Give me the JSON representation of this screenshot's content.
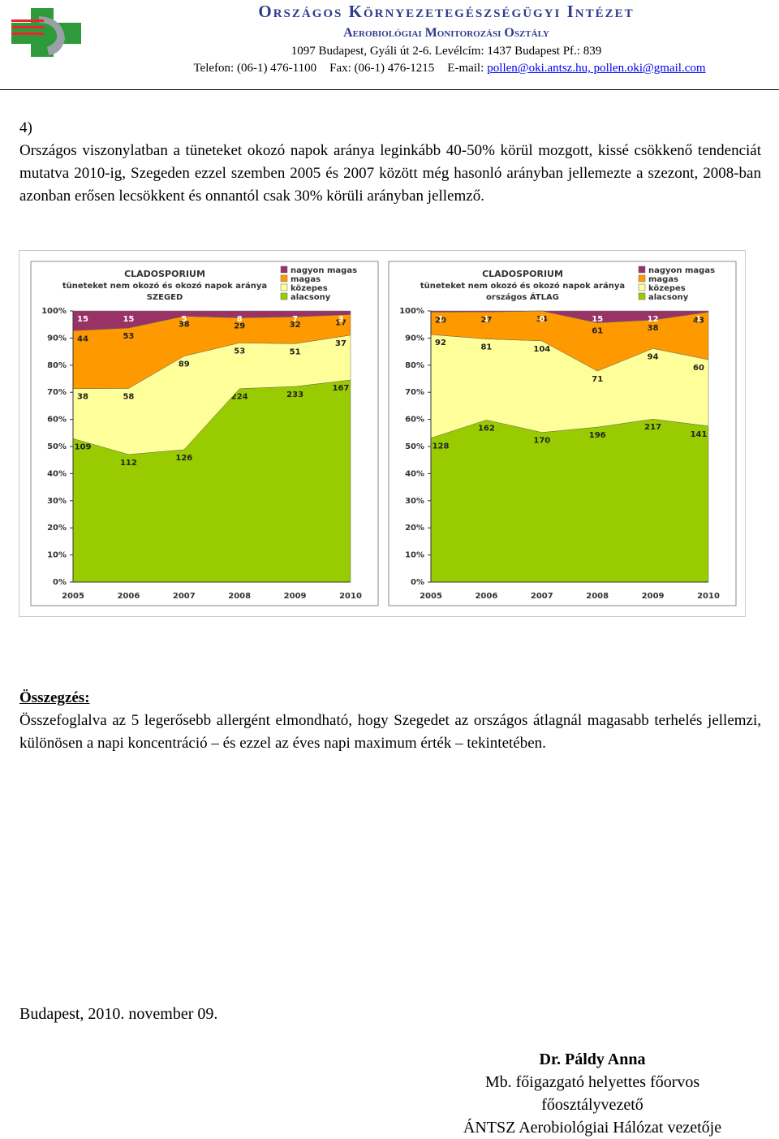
{
  "header": {
    "institute": "Országos Környezetegészségügyi Intézet",
    "department": "Aerobiológiai Monitorozási Osztály",
    "address": "1097 Budapest, Gyáli út 2-6. Levélcím: 1437 Budapest Pf.: 839",
    "phone": "Telefon: (06-1) 476-1100",
    "fax": "Fax: (06-1) 476-1215",
    "email_label": "E-mail:",
    "emails": "pollen@oki.antsz.hu, pollen.oki@gmail.com"
  },
  "section": {
    "number": "4)",
    "paragraph": "Országos viszonylatban a tüneteket okozó napok aránya leginkább 40-50% körül mozgott, kissé csökkenő tendenciát mutatva 2010-ig, Szegeden ezzel szemben 2005 és 2007 között még hasonló arányban jellemezte a szezont, 2008-ban azonban erősen lecsökkent és onnantól csak 30% körüli arányban jellemző."
  },
  "chart_data": [
    {
      "type": "area",
      "stacking": "percent",
      "title": "CLADOSPORIUM",
      "subtitle": "tüneteket nem okozó és okozó napok aránya",
      "region": "SZEGED",
      "categories": [
        "2005",
        "2006",
        "2007",
        "2008",
        "2009",
        "2010"
      ],
      "ylim": [
        0,
        100
      ],
      "yticks": [
        {
          "value": 0,
          "label": "0%"
        },
        {
          "value": 10,
          "label": "10%"
        },
        {
          "value": 20,
          "label": "20%"
        },
        {
          "value": 30,
          "label": "30%"
        },
        {
          "value": 40,
          "label": "40%"
        },
        {
          "value": 50,
          "label": "50%"
        },
        {
          "value": 60,
          "label": "60%"
        },
        {
          "value": 70,
          "label": "70%"
        },
        {
          "value": 80,
          "label": "80%"
        },
        {
          "value": 90,
          "label": "90%"
        },
        {
          "value": 100,
          "label": "100%"
        }
      ],
      "series": [
        {
          "name": "alacsony",
          "color": "#99cc00",
          "values": [
            109,
            112,
            126,
            224,
            233,
            167
          ]
        },
        {
          "name": "közepes",
          "color": "#ffff99",
          "values": [
            38,
            58,
            89,
            53,
            51,
            37
          ]
        },
        {
          "name": "magas",
          "color": "#ff9900",
          "values": [
            44,
            53,
            38,
            29,
            32,
            17
          ]
        },
        {
          "name": "nagyon magas",
          "color": "#993366",
          "values": [
            15,
            15,
            5,
            8,
            7,
            3
          ]
        }
      ]
    },
    {
      "type": "area",
      "stacking": "percent",
      "title": "CLADOSPORIUM",
      "subtitle": "tüneteket nem okozó és okozó napok aránya",
      "region": "országos ÁTLAG",
      "categories": [
        "2005",
        "2006",
        "2007",
        "2008",
        "2009",
        "2010"
      ],
      "ylim": [
        0,
        100
      ],
      "yticks": [
        {
          "value": 0,
          "label": "0%"
        },
        {
          "value": 10,
          "label": "10%"
        },
        {
          "value": 20,
          "label": "20%"
        },
        {
          "value": 30,
          "label": "30%"
        },
        {
          "value": 40,
          "label": "40%"
        },
        {
          "value": 50,
          "label": "50%"
        },
        {
          "value": 60,
          "label": "60%"
        },
        {
          "value": 70,
          "label": "70%"
        },
        {
          "value": 80,
          "label": "80%"
        },
        {
          "value": 90,
          "label": "90%"
        },
        {
          "value": 100,
          "label": "100%"
        }
      ],
      "series": [
        {
          "name": "alacsony",
          "color": "#99cc00",
          "values": [
            128,
            162,
            170,
            196,
            217,
            141
          ]
        },
        {
          "name": "közepes",
          "color": "#ffff99",
          "values": [
            92,
            81,
            104,
            71,
            94,
            60
          ]
        },
        {
          "name": "magas",
          "color": "#ff9900",
          "values": [
            20,
            27,
            34,
            61,
            38,
            43
          ]
        },
        {
          "name": "nagyon magas",
          "color": "#993366",
          "values": [
            1,
            1,
            0,
            15,
            12,
            1
          ]
        }
      ]
    }
  ],
  "summary": {
    "heading": "Összegzés:",
    "text": "Összefoglalva az 5 legerősebb allergént elmondható, hogy Szegedet az országos átlagnál magasabb terhelés jellemzi, különösen a napi koncentráció – és ezzel az éves napi maximum érték – tekintetében."
  },
  "closing": {
    "date": "Budapest, 2010. november 09.",
    "name": "Dr. Páldy Anna",
    "titles": [
      "Mb. főigazgató helyettes főorvos",
      "főosztályvezető",
      "ÁNTSZ Aerobiológiai Hálózat vezetője"
    ]
  }
}
